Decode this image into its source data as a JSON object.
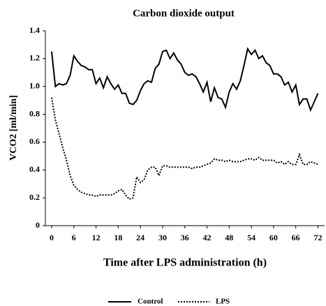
{
  "chart_data": {
    "type": "line",
    "title": "Carbon dioxide output",
    "x_label": "Time after LPS administration (h)",
    "y_label": "VCO2 [ml/min]",
    "x": [
      0,
      1,
      2,
      3,
      4,
      5,
      6,
      7,
      8,
      9,
      10,
      11,
      12,
      13,
      14,
      15,
      16,
      17,
      18,
      19,
      20,
      21,
      22,
      23,
      24,
      25,
      26,
      27,
      28,
      29,
      30,
      31,
      32,
      33,
      34,
      35,
      36,
      37,
      38,
      39,
      40,
      41,
      42,
      43,
      44,
      45,
      46,
      47,
      48,
      49,
      50,
      51,
      52,
      53,
      54,
      55,
      56,
      57,
      58,
      59,
      60,
      61,
      62,
      63,
      64,
      65,
      66,
      67,
      68,
      69,
      70,
      71,
      72
    ],
    "series": [
      {
        "name": "Control",
        "color": "#000000",
        "style": "solid",
        "values": [
          1.25,
          1.0,
          1.02,
          1.01,
          1.02,
          1.08,
          1.22,
          1.18,
          1.15,
          1.14,
          1.12,
          1.12,
          1.02,
          1.06,
          0.99,
          1.07,
          1.02,
          0.98,
          1.01,
          0.95,
          0.95,
          0.88,
          0.87,
          0.9,
          0.97,
          1.02,
          1.04,
          1.03,
          1.13,
          1.16,
          1.25,
          1.26,
          1.2,
          1.24,
          1.19,
          1.16,
          1.1,
          1.08,
          1.09,
          1.07,
          1.02,
          0.96,
          1.03,
          0.89,
          0.99,
          0.92,
          0.91,
          0.85,
          0.96,
          1.02,
          0.98,
          1.04,
          1.15,
          1.27,
          1.23,
          1.26,
          1.2,
          1.22,
          1.17,
          1.15,
          1.09,
          1.09,
          1.07,
          1.01,
          1.03,
          0.96,
          1.01,
          0.87,
          0.91,
          0.91,
          0.83,
          0.89,
          0.95
        ]
      },
      {
        "name": "LPS",
        "color": "#000000",
        "style": "dotted",
        "values": [
          0.92,
          0.76,
          0.66,
          0.56,
          0.47,
          0.36,
          0.29,
          0.26,
          0.24,
          0.23,
          0.22,
          0.22,
          0.21,
          0.22,
          0.22,
          0.22,
          0.22,
          0.23,
          0.25,
          0.26,
          0.22,
          0.19,
          0.2,
          0.35,
          0.31,
          0.33,
          0.4,
          0.42,
          0.42,
          0.36,
          0.43,
          0.43,
          0.42,
          0.42,
          0.42,
          0.42,
          0.42,
          0.42,
          0.41,
          0.42,
          0.42,
          0.43,
          0.44,
          0.45,
          0.48,
          0.47,
          0.47,
          0.46,
          0.47,
          0.46,
          0.46,
          0.46,
          0.47,
          0.48,
          0.48,
          0.47,
          0.49,
          0.47,
          0.47,
          0.47,
          0.47,
          0.45,
          0.46,
          0.44,
          0.46,
          0.44,
          0.44,
          0.51,
          0.44,
          0.44,
          0.46,
          0.45,
          0.44
        ]
      }
    ],
    "xlim": [
      -1.7,
      73.8
    ],
    "xticks": [
      0,
      6,
      12,
      18,
      24,
      30,
      36,
      42,
      48,
      54,
      60,
      66,
      72
    ],
    "ylim": [
      0,
      1.4
    ],
    "yticks": [
      0,
      0.2,
      0.4,
      0.6,
      0.8,
      {
        "value": 1.0,
        "label": "1.0"
      },
      1.2,
      1.4
    ],
    "grid": false,
    "legend": "bottom"
  }
}
